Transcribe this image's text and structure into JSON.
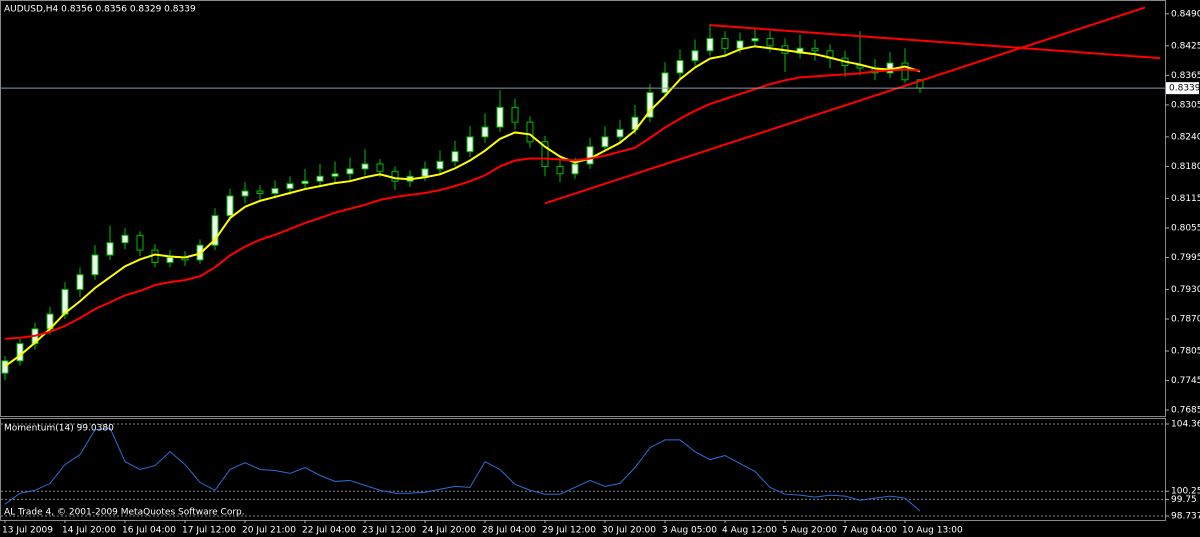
{
  "chart_data": [
    {
      "type": "candlestick",
      "title": "AUDUSD,H4 0.8356 0.8356 0.8329 0.8339",
      "categories": [
        "13 Jul 2009",
        null,
        null,
        null,
        "14 Jul 20:00",
        null,
        null,
        null,
        "16 Jul 04:00",
        null,
        null,
        null,
        "17 Jul 12:00",
        null,
        null,
        null,
        "20 Jul 21:00",
        null,
        null,
        null,
        "22 Jul 04:00",
        null,
        null,
        null,
        "23 Jul 12:00",
        null,
        null,
        null,
        "24 Jul 20:00",
        null,
        null,
        null,
        "28 Jul 04:00",
        null,
        null,
        null,
        "29 Jul 12:00",
        null,
        null,
        null,
        "30 Jul 20:00",
        null,
        null,
        null,
        "3 Aug 05:00",
        null,
        null,
        null,
        "4 Aug 12:00",
        null,
        null,
        null,
        "5 Aug 20:00",
        null,
        null,
        null,
        "7 Aug 04:00",
        null,
        null,
        null,
        "10 Aug 13:00",
        null
      ],
      "open": [
        0.776,
        0.7785,
        0.782,
        0.785,
        0.788,
        0.793,
        0.796,
        0.8,
        0.8025,
        0.804,
        0.801,
        0.7985,
        0.7995,
        0.799,
        0.802,
        0.808,
        0.812,
        0.813,
        0.8125,
        0.8135,
        0.8145,
        0.815,
        0.816,
        0.8165,
        0.8175,
        0.8185,
        0.817,
        0.815,
        0.816,
        0.8175,
        0.819,
        0.821,
        0.824,
        0.826,
        0.83,
        0.827,
        0.823,
        0.818,
        0.8165,
        0.8185,
        0.822,
        0.824,
        0.8255,
        0.828,
        0.833,
        0.837,
        0.8395,
        0.8415,
        0.844,
        0.842,
        0.8435,
        0.844,
        0.8425,
        0.841,
        0.842,
        0.8415,
        0.84,
        0.8385,
        0.838,
        0.837,
        0.839,
        0.8356
      ],
      "high": [
        0.7795,
        0.783,
        0.7862,
        0.7895,
        0.7945,
        0.7975,
        0.802,
        0.806,
        0.8055,
        0.8048,
        0.8022,
        0.801,
        0.8008,
        0.8032,
        0.8095,
        0.8135,
        0.8148,
        0.8142,
        0.8152,
        0.816,
        0.8175,
        0.8185,
        0.819,
        0.8198,
        0.8215,
        0.8195,
        0.818,
        0.8172,
        0.819,
        0.8212,
        0.8232,
        0.8262,
        0.8288,
        0.8335,
        0.8318,
        0.8282,
        0.8242,
        0.8192,
        0.8198,
        0.8238,
        0.8262,
        0.8275,
        0.8305,
        0.8348,
        0.8392,
        0.8418,
        0.8438,
        0.847,
        0.8455,
        0.8452,
        0.8462,
        0.8455,
        0.844,
        0.8448,
        0.8438,
        0.8428,
        0.8415,
        0.8455,
        0.8398,
        0.8412,
        0.842,
        0.8356
      ],
      "low": [
        0.7745,
        0.7775,
        0.7808,
        0.7838,
        0.787,
        0.7915,
        0.795,
        0.799,
        0.8012,
        0.7998,
        0.7975,
        0.7975,
        0.7978,
        0.7982,
        0.801,
        0.807,
        0.8105,
        0.811,
        0.8115,
        0.8122,
        0.8132,
        0.814,
        0.8148,
        0.8152,
        0.8162,
        0.8158,
        0.8132,
        0.8138,
        0.815,
        0.8165,
        0.818,
        0.82,
        0.8228,
        0.825,
        0.8255,
        0.8218,
        0.816,
        0.8148,
        0.8155,
        0.8175,
        0.821,
        0.8228,
        0.8245,
        0.827,
        0.832,
        0.8358,
        0.8385,
        0.8405,
        0.8402,
        0.841,
        0.8425,
        0.8412,
        0.8372,
        0.84,
        0.8395,
        0.838,
        0.8362,
        0.8365,
        0.8355,
        0.836,
        0.835,
        0.8329
      ],
      "close": [
        0.7785,
        0.782,
        0.785,
        0.788,
        0.793,
        0.796,
        0.8,
        0.8025,
        0.804,
        0.801,
        0.7985,
        0.7995,
        0.799,
        0.802,
        0.808,
        0.812,
        0.813,
        0.8125,
        0.8135,
        0.8145,
        0.815,
        0.816,
        0.8165,
        0.8175,
        0.8185,
        0.817,
        0.815,
        0.816,
        0.8175,
        0.819,
        0.821,
        0.824,
        0.826,
        0.83,
        0.827,
        0.823,
        0.818,
        0.8165,
        0.8185,
        0.822,
        0.824,
        0.8255,
        0.828,
        0.833,
        0.837,
        0.8395,
        0.8415,
        0.844,
        0.842,
        0.8435,
        0.844,
        0.8425,
        0.841,
        0.842,
        0.8415,
        0.84,
        0.8385,
        0.838,
        0.837,
        0.839,
        0.8356,
        0.8339
      ],
      "up_color": "#f0fff0",
      "down_color": "#000000",
      "wick_color": "#00c000",
      "series": [
        {
          "color": "#ffff00",
          "values": [
            0.7774,
            0.7796,
            0.7822,
            0.785,
            0.7882,
            0.7906,
            0.7933,
            0.7955,
            0.7977,
            0.7991,
            0.8001,
            0.7997,
            0.7995,
            0.8003,
            0.8031,
            0.8075,
            0.8098,
            0.811,
            0.8118,
            0.8126,
            0.8134,
            0.814,
            0.8146,
            0.815,
            0.8158,
            0.8164,
            0.8156,
            0.8154,
            0.8158,
            0.8164,
            0.8176,
            0.8192,
            0.8212,
            0.8236,
            0.8249,
            0.8245,
            0.822,
            0.82,
            0.8188,
            0.8196,
            0.8212,
            0.8228,
            0.8253,
            0.8293,
            0.8323,
            0.8357,
            0.8381,
            0.8399,
            0.8405,
            0.8418,
            0.8424,
            0.842,
            0.8416,
            0.8412,
            0.8408,
            0.8401,
            0.8393,
            0.8387,
            0.8379,
            0.8377,
            0.8383,
            0.8373
          ]
        },
        {
          "color": "#ff0000",
          "values": [
            0.783,
            0.7832,
            0.7836,
            0.7844,
            0.7856,
            0.7872,
            0.789,
            0.7904,
            0.7918,
            0.7927,
            0.7939,
            0.7945,
            0.7949,
            0.7957,
            0.7975,
            0.7999,
            0.8017,
            0.8031,
            0.8041,
            0.8053,
            0.8065,
            0.8075,
            0.8086,
            0.8094,
            0.8102,
            0.8112,
            0.8118,
            0.8122,
            0.8126,
            0.8132,
            0.814,
            0.815,
            0.8162,
            0.818,
            0.8192,
            0.8196,
            0.8196,
            0.8194,
            0.8192,
            0.8196,
            0.8202,
            0.821,
            0.8218,
            0.8238,
            0.8259,
            0.8277,
            0.8293,
            0.8307,
            0.8317,
            0.8327,
            0.8337,
            0.8347,
            0.8355,
            0.8361,
            0.8363,
            0.8365,
            0.8367,
            0.8369,
            0.8373,
            0.8375,
            0.8377,
            0.8375
          ]
        }
      ],
      "trendlines": [
        {
          "color": "#ff0000",
          "x": [
            36,
            76
          ],
          "y": [
            0.8105,
            0.8503
          ]
        },
        {
          "color": "#ff0000",
          "x": [
            47,
            77
          ],
          "y": [
            0.8467,
            0.84
          ]
        }
      ],
      "last_price": 0.8339,
      "ylim": [
        0.7677,
        0.851
      ],
      "yticks": [
        {
          "value": 0.849,
          "label": "0.8490"
        },
        {
          "value": 0.8425,
          "label": "0.8425"
        },
        {
          "value": 0.8365,
          "label": "0.8365"
        },
        {
          "value": 0.8305,
          "label": "0.8305"
        },
        {
          "value": 0.824,
          "label": "0.8240"
        },
        {
          "value": 0.818,
          "label": "0.8180"
        },
        {
          "value": 0.8115,
          "label": "0.8115"
        },
        {
          "value": 0.8055,
          "label": "0.8055"
        },
        {
          "value": 0.7995,
          "label": "0.7995"
        },
        {
          "value": 0.793,
          "label": "0.7930"
        },
        {
          "value": 0.787,
          "label": "0.7870"
        },
        {
          "value": 0.7805,
          "label": "0.7805"
        },
        {
          "value": 0.7745,
          "label": "0.7745"
        },
        {
          "value": 0.7685,
          "label": "0.7685"
        }
      ],
      "grid": false
    },
    {
      "type": "line",
      "title": "Momentum(14) 99.0380",
      "color": "#2a6fd6",
      "values": [
        99.46,
        100.13,
        100.31,
        100.73,
        101.88,
        102.49,
        104.0,
        104.12,
        102.06,
        101.58,
        101.82,
        102.67,
        101.88,
        100.79,
        100.31,
        101.58,
        102.0,
        101.58,
        101.52,
        101.34,
        101.7,
        101.22,
        100.85,
        100.91,
        100.61,
        100.31,
        100.13,
        100.13,
        100.19,
        100.37,
        100.55,
        100.49,
        102.06,
        101.58,
        100.67,
        100.31,
        100.07,
        100.07,
        100.49,
        100.91,
        100.55,
        100.73,
        101.7,
        102.91,
        103.39,
        103.39,
        102.67,
        102.18,
        102.43,
        101.94,
        101.46,
        100.49,
        100.07,
        100.01,
        99.89,
        100.01,
        99.95,
        99.7,
        99.83,
        99.95,
        99.83,
        99.04
      ],
      "ylim": [
        98.7373,
        104.36
      ],
      "yticks": [
        {
          "value": 104.36,
          "label": "104.3600"
        },
        100.25,
        99.75,
        {
          "value": 98.7373,
          "label": "98.7373"
        }
      ],
      "grid": true
    }
  ],
  "footer": "AL Trade 4, © 2001-2009 MetaQuotes Software Corp."
}
